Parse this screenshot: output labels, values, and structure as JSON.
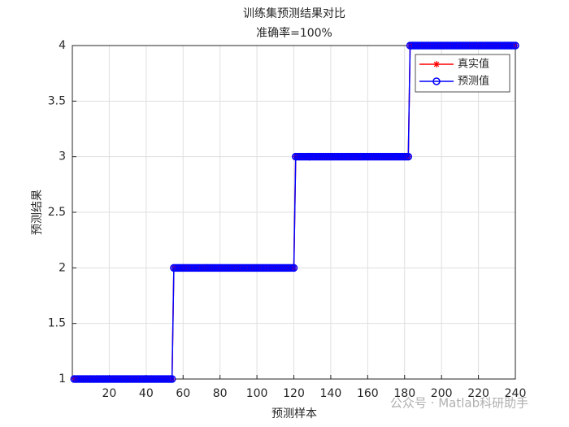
{
  "chart_data": {
    "type": "line",
    "title": "训练集预测结果对比",
    "subtitle": "准确率=100%",
    "x_label": "预测样本",
    "y_label": "预测结果",
    "watermark": "公众号 · Matlab科研助手",
    "x": [
      1,
      2,
      3,
      4,
      5,
      6,
      7,
      8,
      9,
      10,
      11,
      12,
      13,
      14,
      15,
      16,
      17,
      18,
      19,
      20,
      21,
      22,
      23,
      24,
      25,
      26,
      27,
      28,
      29,
      30,
      31,
      32,
      33,
      34,
      35,
      36,
      37,
      38,
      39,
      40,
      41,
      42,
      43,
      44,
      45,
      46,
      47,
      48,
      49,
      50,
      51,
      52,
      53,
      54,
      55,
      56,
      57,
      58,
      59,
      60,
      61,
      62,
      63,
      64,
      65,
      66,
      67,
      68,
      69,
      70,
      71,
      72,
      73,
      74,
      75,
      76,
      77,
      78,
      79,
      80,
      81,
      82,
      83,
      84,
      85,
      86,
      87,
      88,
      89,
      90,
      91,
      92,
      93,
      94,
      95,
      96,
      97,
      98,
      99,
      100,
      101,
      102,
      103,
      104,
      105,
      106,
      107,
      108,
      109,
      110,
      111,
      112,
      113,
      114,
      115,
      116,
      117,
      118,
      119,
      120,
      121,
      122,
      123,
      124,
      125,
      126,
      127,
      128,
      129,
      130,
      131,
      132,
      133,
      134,
      135,
      136,
      137,
      138,
      139,
      140,
      141,
      142,
      143,
      144,
      145,
      146,
      147,
      148,
      149,
      150,
      151,
      152,
      153,
      154,
      155,
      156,
      157,
      158,
      159,
      160,
      161,
      162,
      163,
      164,
      165,
      166,
      167,
      168,
      169,
      170,
      171,
      172,
      173,
      174,
      175,
      176,
      177,
      178,
      179,
      180,
      181,
      182,
      183,
      184,
      185,
      186,
      187,
      188,
      189,
      190,
      191,
      192,
      193,
      194,
      195,
      196,
      197,
      198,
      199,
      200,
      201,
      202,
      203,
      204,
      205,
      206,
      207,
      208,
      209,
      210,
      211,
      212,
      213,
      214,
      215,
      216,
      217,
      218,
      219,
      220,
      221,
      222,
      223,
      224,
      225,
      226,
      227,
      228,
      229,
      230,
      231,
      232,
      233,
      234,
      235,
      236,
      237,
      238,
      239,
      240
    ],
    "series": [
      {
        "name": "真实值",
        "color": "#ff0000",
        "marker": "star",
        "values": [
          1,
          1,
          1,
          1,
          1,
          1,
          1,
          1,
          1,
          1,
          1,
          1,
          1,
          1,
          1,
          1,
          1,
          1,
          1,
          1,
          1,
          1,
          1,
          1,
          1,
          1,
          1,
          1,
          1,
          1,
          1,
          1,
          1,
          1,
          1,
          1,
          1,
          1,
          1,
          1,
          1,
          1,
          1,
          1,
          1,
          1,
          1,
          1,
          1,
          1,
          1,
          1,
          1,
          1,
          2,
          2,
          2,
          2,
          2,
          2,
          2,
          2,
          2,
          2,
          2,
          2,
          2,
          2,
          2,
          2,
          2,
          2,
          2,
          2,
          2,
          2,
          2,
          2,
          2,
          2,
          2,
          2,
          2,
          2,
          2,
          2,
          2,
          2,
          2,
          2,
          2,
          2,
          2,
          2,
          2,
          2,
          2,
          2,
          2,
          2,
          2,
          2,
          2,
          2,
          2,
          2,
          2,
          2,
          2,
          2,
          2,
          2,
          2,
          2,
          2,
          2,
          2,
          2,
          2,
          2,
          3,
          3,
          3,
          3,
          3,
          3,
          3,
          3,
          3,
          3,
          3,
          3,
          3,
          3,
          3,
          3,
          3,
          3,
          3,
          3,
          3,
          3,
          3,
          3,
          3,
          3,
          3,
          3,
          3,
          3,
          3,
          3,
          3,
          3,
          3,
          3,
          3,
          3,
          3,
          3,
          3,
          3,
          3,
          3,
          3,
          3,
          3,
          3,
          3,
          3,
          3,
          3,
          3,
          3,
          3,
          3,
          3,
          3,
          3,
          3,
          3,
          3,
          4,
          4,
          4,
          4,
          4,
          4,
          4,
          4,
          4,
          4,
          4,
          4,
          4,
          4,
          4,
          4,
          4,
          4,
          4,
          4,
          4,
          4,
          4,
          4,
          4,
          4,
          4,
          4,
          4,
          4,
          4,
          4,
          4,
          4,
          4,
          4,
          4,
          4,
          4,
          4,
          4,
          4,
          4,
          4,
          4,
          4,
          4,
          4,
          4,
          4,
          4,
          4,
          4,
          4,
          4,
          4,
          4,
          4
        ]
      },
      {
        "name": "预测值",
        "color": "#0000ff",
        "marker": "circle",
        "values": [
          1,
          1,
          1,
          1,
          1,
          1,
          1,
          1,
          1,
          1,
          1,
          1,
          1,
          1,
          1,
          1,
          1,
          1,
          1,
          1,
          1,
          1,
          1,
          1,
          1,
          1,
          1,
          1,
          1,
          1,
          1,
          1,
          1,
          1,
          1,
          1,
          1,
          1,
          1,
          1,
          1,
          1,
          1,
          1,
          1,
          1,
          1,
          1,
          1,
          1,
          1,
          1,
          1,
          1,
          2,
          2,
          2,
          2,
          2,
          2,
          2,
          2,
          2,
          2,
          2,
          2,
          2,
          2,
          2,
          2,
          2,
          2,
          2,
          2,
          2,
          2,
          2,
          2,
          2,
          2,
          2,
          2,
          2,
          2,
          2,
          2,
          2,
          2,
          2,
          2,
          2,
          2,
          2,
          2,
          2,
          2,
          2,
          2,
          2,
          2,
          2,
          2,
          2,
          2,
          2,
          2,
          2,
          2,
          2,
          2,
          2,
          2,
          2,
          2,
          2,
          2,
          2,
          2,
          2,
          2,
          3,
          3,
          3,
          3,
          3,
          3,
          3,
          3,
          3,
          3,
          3,
          3,
          3,
          3,
          3,
          3,
          3,
          3,
          3,
          3,
          3,
          3,
          3,
          3,
          3,
          3,
          3,
          3,
          3,
          3,
          3,
          3,
          3,
          3,
          3,
          3,
          3,
          3,
          3,
          3,
          3,
          3,
          3,
          3,
          3,
          3,
          3,
          3,
          3,
          3,
          3,
          3,
          3,
          3,
          3,
          3,
          3,
          3,
          3,
          3,
          3,
          3,
          4,
          4,
          4,
          4,
          4,
          4,
          4,
          4,
          4,
          4,
          4,
          4,
          4,
          4,
          4,
          4,
          4,
          4,
          4,
          4,
          4,
          4,
          4,
          4,
          4,
          4,
          4,
          4,
          4,
          4,
          4,
          4,
          4,
          4,
          4,
          4,
          4,
          4,
          4,
          4,
          4,
          4,
          4,
          4,
          4,
          4,
          4,
          4,
          4,
          4,
          4,
          4,
          4,
          4,
          4,
          4,
          4,
          4
        ]
      }
    ],
    "xlim": [
      0,
      240
    ],
    "xticks": [
      20,
      40,
      60,
      80,
      100,
      120,
      140,
      160,
      180,
      200,
      220,
      240
    ],
    "ylim": [
      1,
      4
    ],
    "yticks": [
      1,
      1.5,
      2,
      2.5,
      3,
      3.5,
      4
    ],
    "grid": true,
    "legend": "northeast"
  }
}
